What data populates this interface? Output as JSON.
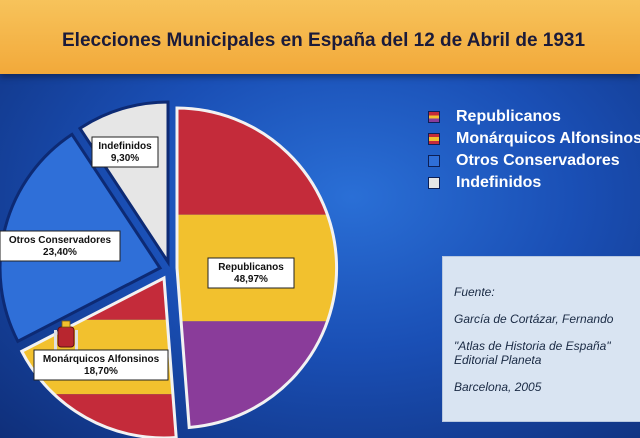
{
  "title": "Elecciones Municipales en España del 12 de Abril de 1931",
  "chart_data": {
    "type": "pie",
    "title": "Elecciones Municipales en España del 12 de Abril de 1931",
    "slices": [
      {
        "name": "Republicanos",
        "value": 48.97,
        "label": "Republicanos",
        "pct": "48,97%"
      },
      {
        "name": "Monárquicos Alfonsinos",
        "value": 18.7,
        "label": "Monárquicos Alfonsinos",
        "pct": "18,70%"
      },
      {
        "name": "Otros Conservadores",
        "value": 23.4,
        "label": "Otros Conservadores",
        "pct": "23,40%"
      },
      {
        "name": "Indefinidos",
        "value": 9.3,
        "label": "Indefinidos",
        "pct": "9,30%"
      }
    ],
    "legend_position": "right"
  },
  "legend": [
    {
      "label": "Republicanos",
      "swatch": [
        "#c42b3a",
        "#f2c12e",
        "#8a3c9a"
      ]
    },
    {
      "label": "Monárquicos Alfonsinos",
      "swatch": [
        "#c42b3a",
        "#f2c12e",
        "#c42b3a"
      ]
    },
    {
      "label": "Otros Conservadores",
      "swatch": [
        "#2f6fd8"
      ]
    },
    {
      "label": "Indefinidos",
      "swatch": [
        "#e6e6e6"
      ]
    }
  ],
  "source": {
    "heading": "Fuente:",
    "author": "García de Cortázar, Fernando",
    "work_line1": "\"Atlas de Historia de España\"",
    "work_line2": "Editorial Planeta",
    "place_year": "Barcelona, 2005"
  },
  "colors": {
    "red": "#c42b3a",
    "yellow": "#f2c12e",
    "purple": "#8a3c9a",
    "blue": "#2f6fd8",
    "gray": "#e6e6e6",
    "title_bar": "#f4b443"
  }
}
